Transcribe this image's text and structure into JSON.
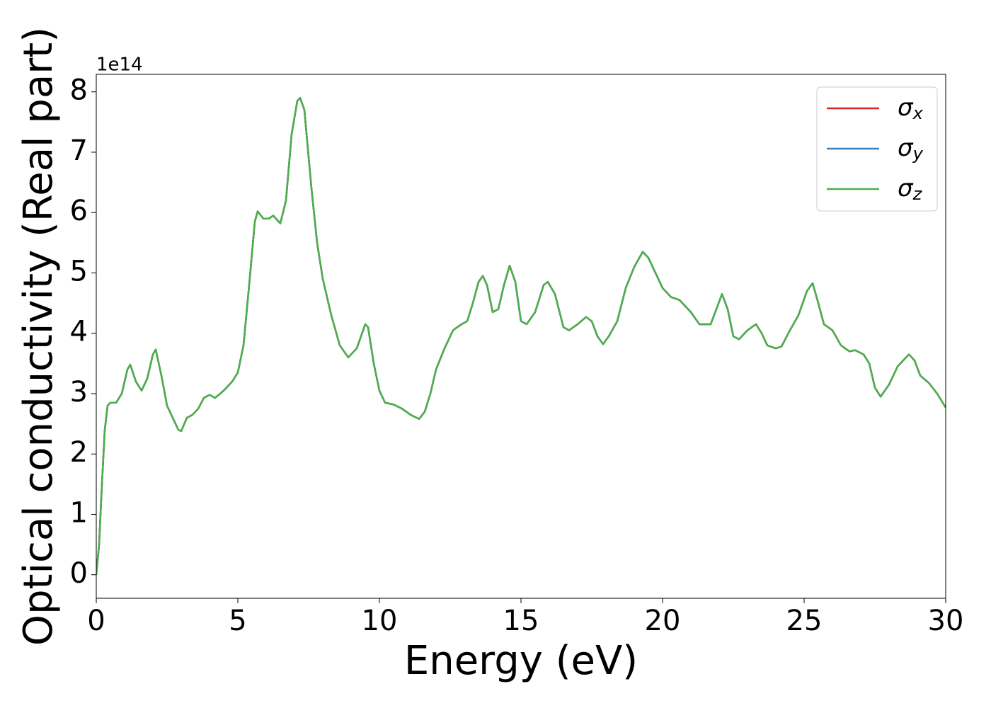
{
  "chart_data": {
    "type": "line",
    "xlabel": "Energy (eV)",
    "ylabel": "Optical conductivity (Real part)",
    "y_offset_label": "1e14",
    "x": [
      0,
      0.1,
      0.2,
      0.3,
      0.4,
      0.5,
      0.7,
      0.9,
      1.1,
      1.2,
      1.4,
      1.6,
      1.8,
      2.0,
      2.1,
      2.3,
      2.5,
      2.7,
      2.9,
      3.0,
      3.2,
      3.4,
      3.6,
      3.8,
      4.0,
      4.2,
      4.5,
      4.8,
      5.0,
      5.2,
      5.4,
      5.6,
      5.7,
      5.9,
      6.1,
      6.25,
      6.5,
      6.7,
      6.9,
      7.1,
      7.2,
      7.35,
      7.6,
      7.8,
      8.0,
      8.3,
      8.6,
      8.9,
      9.2,
      9.5,
      9.6,
      9.8,
      10.0,
      10.2,
      10.5,
      10.8,
      11.1,
      11.4,
      11.6,
      11.8,
      12.0,
      12.3,
      12.6,
      12.9,
      13.1,
      13.3,
      13.5,
      13.65,
      13.8,
      14.0,
      14.2,
      14.4,
      14.6,
      14.8,
      15.0,
      15.2,
      15.5,
      15.8,
      15.95,
      16.2,
      16.5,
      16.7,
      17.0,
      17.3,
      17.5,
      17.7,
      17.9,
      18.1,
      18.4,
      18.7,
      19.0,
      19.3,
      19.5,
      19.8,
      20.0,
      20.3,
      20.6,
      21.0,
      21.3,
      21.7,
      21.9,
      22.1,
      22.3,
      22.5,
      22.7,
      23.0,
      23.3,
      23.5,
      23.7,
      24.0,
      24.2,
      24.5,
      24.8,
      25.1,
      25.3,
      25.5,
      25.7,
      26.0,
      26.3,
      26.6,
      26.8,
      27.1,
      27.3,
      27.5,
      27.7,
      28.0,
      28.3,
      28.7,
      28.9,
      29.1,
      29.4,
      29.7,
      30.0
    ],
    "series": [
      {
        "name": "σx",
        "color": "#d62728",
        "values": [
          0,
          0.5,
          1.5,
          2.4,
          2.8,
          2.85,
          2.85,
          3.0,
          3.4,
          3.48,
          3.2,
          3.05,
          3.25,
          3.65,
          3.73,
          3.3,
          2.8,
          2.6,
          2.4,
          2.38,
          2.6,
          2.65,
          2.75,
          2.93,
          2.98,
          2.93,
          3.05,
          3.2,
          3.35,
          3.8,
          4.8,
          5.85,
          6.02,
          5.9,
          5.9,
          5.95,
          5.82,
          6.2,
          7.3,
          7.85,
          7.9,
          7.7,
          6.4,
          5.5,
          4.9,
          4.3,
          3.8,
          3.6,
          3.75,
          4.15,
          4.1,
          3.5,
          3.05,
          2.85,
          2.82,
          2.75,
          2.65,
          2.58,
          2.7,
          3.0,
          3.4,
          3.75,
          4.05,
          4.15,
          4.2,
          4.5,
          4.85,
          4.95,
          4.8,
          4.35,
          4.4,
          4.8,
          5.12,
          4.85,
          4.2,
          4.15,
          4.35,
          4.8,
          4.85,
          4.65,
          4.1,
          4.05,
          4.15,
          4.27,
          4.2,
          3.95,
          3.82,
          3.95,
          4.2,
          4.75,
          5.1,
          5.35,
          5.25,
          4.95,
          4.75,
          4.6,
          4.55,
          4.35,
          4.15,
          4.15,
          4.4,
          4.65,
          4.4,
          3.95,
          3.9,
          4.05,
          4.15,
          4.0,
          3.8,
          3.75,
          3.78,
          4.05,
          4.3,
          4.7,
          4.83,
          4.5,
          4.15,
          4.05,
          3.8,
          3.7,
          3.72,
          3.65,
          3.5,
          3.1,
          2.95,
          3.15,
          3.45,
          3.65,
          3.55,
          3.3,
          3.18,
          3.0,
          2.77
        ]
      },
      {
        "name": "σy",
        "color": "#3a7ebf",
        "values": [
          0,
          0.5,
          1.5,
          2.4,
          2.8,
          2.85,
          2.85,
          3.0,
          3.4,
          3.48,
          3.2,
          3.05,
          3.25,
          3.65,
          3.73,
          3.3,
          2.8,
          2.6,
          2.4,
          2.38,
          2.6,
          2.65,
          2.75,
          2.93,
          2.98,
          2.93,
          3.05,
          3.2,
          3.35,
          3.8,
          4.8,
          5.85,
          6.02,
          5.9,
          5.9,
          5.95,
          5.82,
          6.2,
          7.3,
          7.85,
          7.9,
          7.7,
          6.4,
          5.5,
          4.9,
          4.3,
          3.8,
          3.6,
          3.75,
          4.15,
          4.1,
          3.5,
          3.05,
          2.85,
          2.82,
          2.75,
          2.65,
          2.58,
          2.7,
          3.0,
          3.4,
          3.75,
          4.05,
          4.15,
          4.2,
          4.5,
          4.85,
          4.95,
          4.8,
          4.35,
          4.4,
          4.8,
          5.12,
          4.85,
          4.2,
          4.15,
          4.35,
          4.8,
          4.85,
          4.65,
          4.1,
          4.05,
          4.15,
          4.27,
          4.2,
          3.95,
          3.82,
          3.95,
          4.2,
          4.75,
          5.1,
          5.35,
          5.25,
          4.95,
          4.75,
          4.6,
          4.55,
          4.35,
          4.15,
          4.15,
          4.4,
          4.65,
          4.4,
          3.95,
          3.9,
          4.05,
          4.15,
          4.0,
          3.8,
          3.75,
          3.78,
          4.05,
          4.3,
          4.7,
          4.83,
          4.5,
          4.15,
          4.05,
          3.8,
          3.7,
          3.72,
          3.65,
          3.5,
          3.1,
          2.95,
          3.15,
          3.45,
          3.65,
          3.55,
          3.3,
          3.18,
          3.0,
          2.77
        ]
      },
      {
        "name": "σz",
        "color": "#4daf4a",
        "values": [
          0,
          0.5,
          1.5,
          2.4,
          2.8,
          2.85,
          2.85,
          3.0,
          3.4,
          3.48,
          3.2,
          3.05,
          3.25,
          3.65,
          3.73,
          3.3,
          2.8,
          2.6,
          2.4,
          2.38,
          2.6,
          2.65,
          2.75,
          2.93,
          2.98,
          2.93,
          3.05,
          3.2,
          3.35,
          3.8,
          4.8,
          5.85,
          6.02,
          5.9,
          5.9,
          5.95,
          5.82,
          6.2,
          7.3,
          7.85,
          7.9,
          7.7,
          6.4,
          5.5,
          4.9,
          4.3,
          3.8,
          3.6,
          3.75,
          4.15,
          4.1,
          3.5,
          3.05,
          2.85,
          2.82,
          2.75,
          2.65,
          2.58,
          2.7,
          3.0,
          3.4,
          3.75,
          4.05,
          4.15,
          4.2,
          4.5,
          4.85,
          4.95,
          4.8,
          4.35,
          4.4,
          4.8,
          5.12,
          4.85,
          4.2,
          4.15,
          4.35,
          4.8,
          4.85,
          4.65,
          4.1,
          4.05,
          4.15,
          4.27,
          4.2,
          3.95,
          3.82,
          3.95,
          4.2,
          4.75,
          5.1,
          5.35,
          5.25,
          4.95,
          4.75,
          4.6,
          4.55,
          4.35,
          4.15,
          4.15,
          4.4,
          4.65,
          4.4,
          3.95,
          3.9,
          4.05,
          4.15,
          4.0,
          3.8,
          3.75,
          3.78,
          4.05,
          4.3,
          4.7,
          4.83,
          4.5,
          4.15,
          4.05,
          3.8,
          3.7,
          3.72,
          3.65,
          3.5,
          3.1,
          2.95,
          3.15,
          3.45,
          3.65,
          3.55,
          3.3,
          3.18,
          3.0,
          2.77
        ]
      }
    ],
    "xlim": [
      0,
      30
    ],
    "xticks": [
      0,
      5,
      10,
      15,
      20,
      25,
      30
    ],
    "ylim": [
      -0.39,
      8.29
    ],
    "yticks": [
      0,
      1,
      2,
      3,
      4,
      5,
      6,
      7,
      8
    ],
    "legend": "upper right",
    "grid": false
  }
}
